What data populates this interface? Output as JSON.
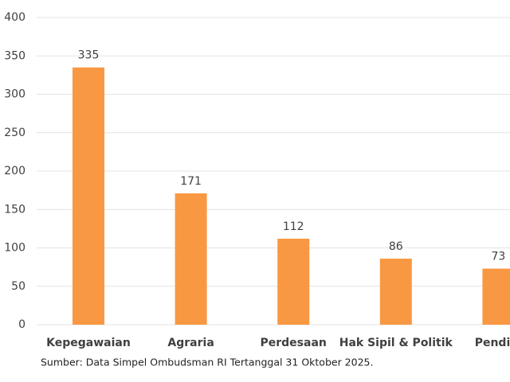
{
  "chart_data": {
    "type": "bar",
    "categories": [
      "Kepegawaian",
      "Agraria",
      "Perdesaan",
      "Hak Sipil & Politik",
      "Pendidi"
    ],
    "values": [
      335,
      171,
      112,
      86,
      73
    ],
    "color": "#f99843",
    "ylim": [
      0,
      400
    ],
    "yticks": [
      0,
      50,
      100,
      150,
      200,
      250,
      300,
      350,
      400
    ],
    "grid": true,
    "source": "Sumber: Data Simpel Ombudsman RI Tertanggal 31 Oktober 2025."
  }
}
